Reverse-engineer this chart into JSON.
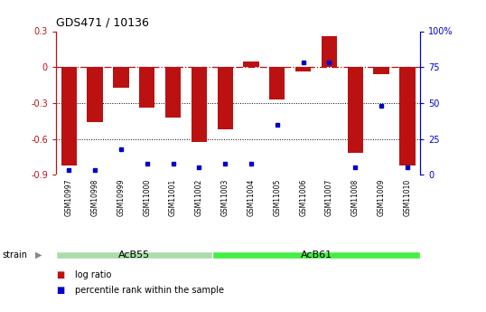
{
  "title": "GDS471 / 10136",
  "samples": [
    "GSM10997",
    "GSM10998",
    "GSM10999",
    "GSM11000",
    "GSM11001",
    "GSM11002",
    "GSM11003",
    "GSM11004",
    "GSM11005",
    "GSM11006",
    "GSM11007",
    "GSM11008",
    "GSM11009",
    "GSM11010"
  ],
  "log_ratio": [
    -0.82,
    -0.46,
    -0.17,
    -0.34,
    -0.42,
    -0.63,
    -0.52,
    0.05,
    -0.27,
    -0.04,
    0.26,
    -0.72,
    -0.06,
    -0.82
  ],
  "percentile": [
    3,
    3,
    18,
    8,
    8,
    5,
    8,
    8,
    35,
    78,
    78,
    5,
    48,
    5
  ],
  "group1_label": "AcB55",
  "group1_count": 6,
  "group2_label": "AcB61",
  "group2_count": 8,
  "strain_label": "strain",
  "ymin": -0.9,
  "ymax": 0.3,
  "yticks": [
    -0.9,
    -0.6,
    -0.3,
    0.0,
    0.3
  ],
  "ytick_labels": [
    "-0.9",
    "-0.6",
    "-0.3",
    "0",
    "0.3"
  ],
  "right_yticks": [
    0,
    25,
    50,
    75,
    100
  ],
  "right_ytick_labels": [
    "0",
    "25",
    "50",
    "75",
    "100%"
  ],
  "hline_y": 0.0,
  "dotted_lines": [
    -0.3,
    -0.6
  ],
  "bar_color": "#bb1111",
  "dot_color": "#0000cc",
  "group1_color": "#aaddaa",
  "group2_color": "#44ee44",
  "bg_color": "#ffffff",
  "legend_log_ratio": "log ratio",
  "legend_percentile": "percentile rank within the sample"
}
